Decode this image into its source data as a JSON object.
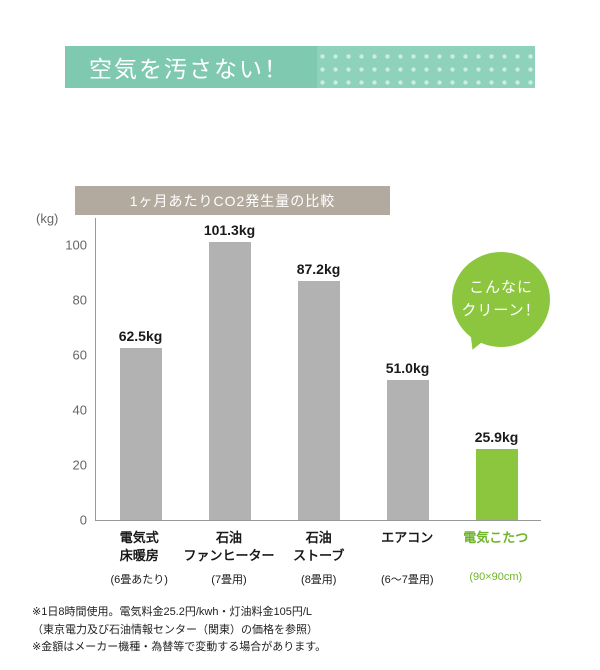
{
  "banner": {
    "title": "空気を汚さない！",
    "solid_bg": "#7ec9b0",
    "dotted_bg": "#8fd2bc"
  },
  "chart_data": {
    "type": "bar",
    "title": "1ヶ月あたりCO2発生量の比較",
    "unit_label": "(kg)",
    "ylim": [
      0,
      110
    ],
    "yticks": [
      0,
      20,
      40,
      60,
      80,
      100
    ],
    "bar_color": "#b2b2b2",
    "highlight_color": "#8cc63e",
    "header_bg": "#b3aa9f",
    "categories": [
      {
        "name_lines": [
          "電気式",
          "床暖房"
        ],
        "sub": "(6畳あたり)",
        "value": 62.5,
        "value_label": "62.5kg",
        "highlight": false
      },
      {
        "name_lines": [
          "石油",
          "ファンヒーター"
        ],
        "sub": "(7畳用)",
        "value": 101.3,
        "value_label": "101.3kg",
        "highlight": false
      },
      {
        "name_lines": [
          "石油",
          "ストーブ"
        ],
        "sub": "(8畳用)",
        "value": 87.2,
        "value_label": "87.2kg",
        "highlight": false
      },
      {
        "name_lines": [
          "エアコン"
        ],
        "sub": "(6～7畳用)",
        "value": 51.0,
        "value_label": "51.0kg",
        "highlight": false
      },
      {
        "name_lines": [
          "電気こたつ"
        ],
        "sub": "(90×90cm)",
        "value": 25.9,
        "value_label": "25.9kg",
        "highlight": true
      }
    ]
  },
  "bubble": {
    "line1": "こんなに",
    "line2": "クリーン！",
    "bg": "#8cc63e"
  },
  "footnotes": [
    "※1日8時間使用。電気料金25.2円/kwh・灯油料金105円/L",
    "（東京電力及び石油情報センター（関東）の価格を参照）",
    "※金額はメーカー機種・為替等で変動する場合があります。"
  ]
}
